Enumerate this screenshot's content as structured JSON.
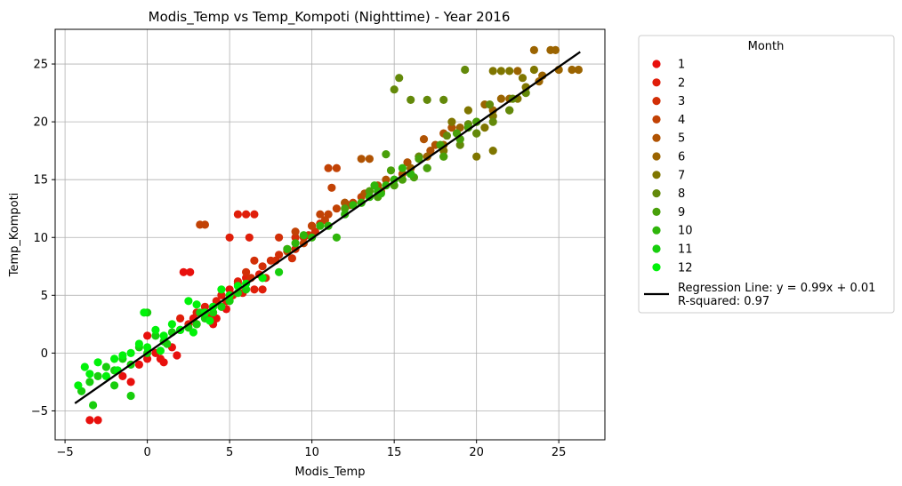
{
  "chart_data": {
    "type": "scatter",
    "title": "Modis_Temp vs Temp_Kompoti (Nighttime) - Year 2016",
    "xlabel": "Modis_Temp",
    "ylabel": "Temp_Kompoti",
    "xlim": [
      -5.6,
      27.8
    ],
    "ylim": [
      -7.5,
      28
    ],
    "xticks": [
      -5,
      0,
      5,
      10,
      15,
      20,
      25
    ],
    "yticks": [
      -5,
      0,
      5,
      10,
      15,
      20,
      25
    ],
    "grid": true,
    "legend_title": "Month",
    "legend_position": "outside right",
    "series": [
      {
        "name": "1",
        "color": "#e8100d",
        "points": [
          [
            -3.5,
            -5.8
          ],
          [
            -3,
            -5.8
          ],
          [
            -1,
            -2.5
          ],
          [
            0,
            -0.5
          ],
          [
            0.5,
            0
          ],
          [
            1,
            -0.8
          ],
          [
            1.5,
            0.5
          ],
          [
            2,
            2
          ],
          [
            2.2,
            7
          ],
          [
            2.6,
            7
          ],
          [
            2.8,
            3
          ],
          [
            3.5,
            3.5
          ],
          [
            3.8,
            3.2
          ],
          [
            4.2,
            3
          ],
          [
            4.5,
            4
          ],
          [
            4.8,
            3.8
          ],
          [
            5,
            5.5
          ],
          [
            5.5,
            6
          ],
          [
            0,
            1.5
          ],
          [
            0.8,
            -0.5
          ],
          [
            -0.5,
            -1
          ],
          [
            1.8,
            -0.2
          ],
          [
            4,
            2.5
          ],
          [
            -1.5,
            -2
          ],
          [
            3,
            2.5
          ]
        ]
      },
      {
        "name": "2",
        "color": "#e01e0a",
        "points": [
          [
            2,
            3
          ],
          [
            3,
            3.5
          ],
          [
            4,
            4
          ],
          [
            4.8,
            4.5
          ],
          [
            5.2,
            5
          ],
          [
            5.5,
            6.2
          ],
          [
            6,
            6.5
          ],
          [
            6.5,
            5.5
          ],
          [
            5.5,
            12
          ],
          [
            6,
            12
          ],
          [
            6.5,
            12
          ],
          [
            5,
            10
          ],
          [
            6.2,
            10
          ],
          [
            7,
            5.5
          ],
          [
            4.5,
            5
          ],
          [
            3.5,
            4
          ],
          [
            6.8,
            6.8
          ],
          [
            5.8,
            5.2
          ],
          [
            2.5,
            2.5
          ],
          [
            4.2,
            4.5
          ]
        ]
      },
      {
        "name": "3",
        "color": "#d22f07",
        "points": [
          [
            6,
            7
          ],
          [
            6.5,
            8
          ],
          [
            7,
            7.5
          ],
          [
            7.5,
            8
          ],
          [
            8,
            8.5
          ],
          [
            8.5,
            9
          ],
          [
            9,
            9
          ],
          [
            9.5,
            10
          ],
          [
            10,
            11
          ],
          [
            10.5,
            11.2
          ],
          [
            8,
            10
          ],
          [
            9,
            10
          ],
          [
            7.2,
            6.5
          ],
          [
            6.3,
            6.5
          ],
          [
            8.8,
            8.2
          ],
          [
            9.8,
            10.2
          ],
          [
            7.8,
            8
          ],
          [
            10.2,
            10.5
          ]
        ]
      },
      {
        "name": "4",
        "color": "#c24205",
        "points": [
          [
            3.2,
            11.1
          ],
          [
            3.5,
            11.1
          ],
          [
            9,
            10.5
          ],
          [
            10,
            11
          ],
          [
            10.5,
            12
          ],
          [
            11,
            12
          ],
          [
            11.5,
            12.5
          ],
          [
            11,
            16
          ],
          [
            11.5,
            16
          ],
          [
            12,
            13
          ],
          [
            12.5,
            13
          ],
          [
            13,
            13.5
          ],
          [
            13.5,
            14
          ],
          [
            9.5,
            9.5
          ],
          [
            10.8,
            11.5
          ],
          [
            12.3,
            12.8
          ],
          [
            11.2,
            14.3
          ],
          [
            8.5,
            8.8
          ]
        ]
      },
      {
        "name": "5",
        "color": "#b05303",
        "points": [
          [
            12,
            13
          ],
          [
            13,
            16.8
          ],
          [
            13.5,
            16.8
          ],
          [
            14,
            14.5
          ],
          [
            14.5,
            15
          ],
          [
            15,
            15
          ],
          [
            15.5,
            15.5
          ],
          [
            16,
            16
          ],
          [
            16.5,
            17
          ],
          [
            17,
            17
          ],
          [
            17.5,
            18
          ],
          [
            18,
            19
          ],
          [
            18.5,
            19.5
          ],
          [
            14.2,
            14
          ],
          [
            15.8,
            16.5
          ],
          [
            16.8,
            18.5
          ],
          [
            13.2,
            13.8
          ],
          [
            17.2,
            17.5
          ]
        ]
      },
      {
        "name": "6",
        "color": "#9b6401",
        "points": [
          [
            16,
            16
          ],
          [
            17,
            17
          ],
          [
            18,
            18
          ],
          [
            19,
            19.5
          ],
          [
            20,
            20
          ],
          [
            21,
            21
          ],
          [
            22,
            22
          ],
          [
            23,
            23
          ],
          [
            24,
            24
          ],
          [
            23.5,
            26.2
          ],
          [
            24.5,
            26.2
          ],
          [
            24.8,
            26.2
          ],
          [
            25,
            24.5
          ],
          [
            25.8,
            24.5
          ],
          [
            26.2,
            24.5
          ],
          [
            21.5,
            22
          ],
          [
            22.5,
            24.4
          ],
          [
            20.5,
            21.5
          ],
          [
            23.8,
            23.5
          ]
        ]
      },
      {
        "name": "7",
        "color": "#7f7600",
        "points": [
          [
            18,
            17.5
          ],
          [
            19,
            18.5
          ],
          [
            20,
            19
          ],
          [
            21,
            20.5
          ],
          [
            22,
            21
          ],
          [
            22.5,
            22
          ],
          [
            23,
            23
          ],
          [
            23.5,
            24.5
          ],
          [
            21,
            24.4
          ],
          [
            21.5,
            24.4
          ],
          [
            22,
            24.4
          ],
          [
            20,
            17
          ],
          [
            21,
            17.5
          ],
          [
            19.5,
            21
          ],
          [
            20.5,
            19.5
          ],
          [
            22.8,
            23.8
          ],
          [
            18.5,
            20
          ]
        ]
      },
      {
        "name": "8",
        "color": "#63890a",
        "points": [
          [
            15,
            22.8
          ],
          [
            16,
            21.9
          ],
          [
            17,
            21.9
          ],
          [
            18,
            21.9
          ],
          [
            19.3,
            24.5
          ],
          [
            15.3,
            23.8
          ],
          [
            18,
            17
          ],
          [
            19,
            18
          ],
          [
            20,
            19
          ],
          [
            21,
            20
          ],
          [
            22,
            21
          ],
          [
            23,
            22.5
          ],
          [
            17,
            16
          ],
          [
            16.5,
            17
          ],
          [
            19.5,
            19.8
          ],
          [
            20.8,
            21.5
          ],
          [
            22.2,
            22
          ],
          [
            18.2,
            18.8
          ]
        ]
      },
      {
        "name": "9",
        "color": "#48a00a",
        "points": [
          [
            14,
            13.5
          ],
          [
            15,
            14.5
          ],
          [
            16,
            15.5
          ],
          [
            17,
            16
          ],
          [
            18,
            17
          ],
          [
            19,
            18.5
          ],
          [
            20,
            20
          ],
          [
            14.5,
            17.2
          ],
          [
            13,
            13
          ],
          [
            12,
            12.5
          ],
          [
            15.5,
            15
          ],
          [
            16.5,
            16.8
          ],
          [
            17.8,
            18
          ],
          [
            18.8,
            19
          ],
          [
            13.5,
            14
          ],
          [
            14.8,
            15.8
          ],
          [
            16.2,
            15.2
          ],
          [
            19.5,
            19.5
          ]
        ]
      },
      {
        "name": "10",
        "color": "#2fb50b",
        "points": [
          [
            9,
            9.5
          ],
          [
            10,
            10
          ],
          [
            11,
            11
          ],
          [
            12,
            12
          ],
          [
            13,
            13
          ],
          [
            13.5,
            13.5
          ],
          [
            14,
            14
          ],
          [
            14.5,
            14.5
          ],
          [
            15,
            15
          ],
          [
            16,
            15.5
          ],
          [
            10.5,
            11
          ],
          [
            12.5,
            12.8
          ],
          [
            11.5,
            10
          ],
          [
            9.5,
            10.2
          ],
          [
            13.8,
            14.5
          ],
          [
            15.5,
            16
          ],
          [
            8.5,
            9
          ],
          [
            14.2,
            13.8
          ]
        ]
      },
      {
        "name": "11",
        "color": "#17ce0d",
        "points": [
          [
            -4,
            -3.3
          ],
          [
            -3.5,
            -2.5
          ],
          [
            -3,
            -2
          ],
          [
            -2,
            -1.5
          ],
          [
            -1,
            -1
          ],
          [
            0,
            0
          ],
          [
            1,
            1
          ],
          [
            2,
            2
          ],
          [
            3,
            2.5
          ],
          [
            4,
            3.5
          ],
          [
            5,
            4.5
          ],
          [
            6,
            5.5
          ],
          [
            7,
            6.5
          ],
          [
            8,
            7
          ],
          [
            0,
            3.5
          ],
          [
            -1,
            -3.7
          ],
          [
            -2,
            -2.8
          ],
          [
            -3.3,
            -4.5
          ],
          [
            1.5,
            1.8
          ],
          [
            2.5,
            2.2
          ],
          [
            3.5,
            3
          ],
          [
            -1.5,
            -0.5
          ],
          [
            -0.5,
            0.5
          ],
          [
            0.5,
            1.5
          ],
          [
            4.5,
            4
          ],
          [
            5.5,
            5.2
          ],
          [
            -2.5,
            -1.2
          ],
          [
            1.2,
            0.8
          ],
          [
            3.2,
            3.5
          ]
        ]
      },
      {
        "name": "12",
        "color": "#01f20a",
        "points": [
          [
            -4.2,
            -2.8
          ],
          [
            -3.5,
            -1.8
          ],
          [
            -3,
            -0.8
          ],
          [
            -2,
            -0.5
          ],
          [
            -1,
            0
          ],
          [
            0,
            0.5
          ],
          [
            1,
            1.5
          ],
          [
            2,
            2
          ],
          [
            2.5,
            4.5
          ],
          [
            3,
            4.2
          ],
          [
            4,
            4
          ],
          [
            4.5,
            5.5
          ],
          [
            5,
            5
          ],
          [
            6,
            6
          ],
          [
            7,
            6.5
          ],
          [
            -0.5,
            0.8
          ],
          [
            -1.5,
            -0.2
          ],
          [
            0.5,
            2
          ],
          [
            1.5,
            2.5
          ],
          [
            3.5,
            3.5
          ],
          [
            -2.5,
            -2
          ],
          [
            -1.8,
            -1.5
          ],
          [
            2.8,
            1.8
          ],
          [
            3.8,
            2.8
          ],
          [
            5.5,
            5.8
          ],
          [
            -0.2,
            3.5
          ],
          [
            -3.8,
            -1.2
          ],
          [
            0.8,
            0.2
          ]
        ]
      }
    ],
    "regression": {
      "label": "Regression Line: y = 0.99x + 0.01\nR-squared: 0.97",
      "slope": 0.99,
      "intercept": 0.01,
      "x_range": [
        -4.4,
        26.3
      ],
      "color": "#000000"
    }
  }
}
